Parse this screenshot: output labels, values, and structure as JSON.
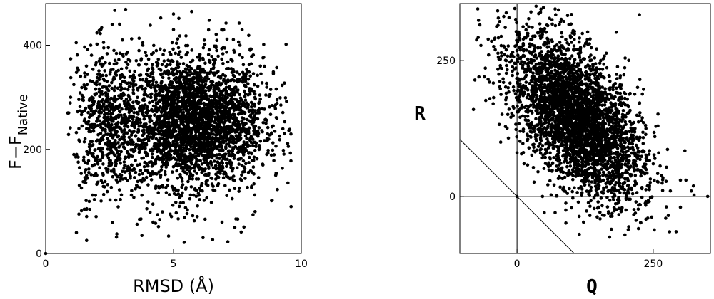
{
  "chart_data": [
    {
      "type": "scatter",
      "xlabel": "RMSD (Å)",
      "ylabel_main": "F−F",
      "ylabel_sub": "Native",
      "xlim": [
        0,
        10
      ],
      "ylim": [
        0,
        480
      ],
      "xticks": [
        "0",
        "5",
        "10"
      ],
      "yticks": [
        "0",
        "200",
        "400"
      ],
      "grid": false,
      "color": "#000000",
      "points": [
        [
          0.0,
          0
        ],
        [
          9.6,
          90
        ],
        [
          2.7,
          467
        ],
        [
          1.6,
          25
        ],
        [
          1.2,
          40
        ],
        [
          0.9,
          270
        ],
        [
          4.2,
          60
        ],
        [
          4.3,
          58
        ],
        [
          6.9,
          60
        ],
        [
          7.4,
          50
        ],
        [
          5.0,
          460
        ],
        [
          6.4,
          448
        ],
        [
          5.0,
          430
        ],
        [
          2.6,
          440
        ],
        [
          3.0,
          410
        ],
        [
          9.3,
          198
        ],
        [
          9.2,
          285
        ],
        [
          9.0,
          150
        ],
        [
          1.4,
          82
        ],
        [
          1.7,
          100
        ],
        [
          2.0,
          150
        ],
        [
          2.2,
          360
        ],
        [
          3.3,
          370
        ],
        [
          7.6,
          400
        ],
        [
          8.4,
          360
        ],
        [
          8.9,
          245
        ],
        [
          1.8,
          300
        ],
        [
          2.4,
          210
        ],
        [
          2.9,
          180
        ],
        [
          3.5,
          250
        ],
        [
          4.0,
          330
        ],
        [
          4.5,
          150
        ],
        [
          5.5,
          290
        ],
        [
          6.0,
          210
        ],
        [
          6.5,
          270
        ],
        [
          7.0,
          190
        ],
        [
          7.5,
          310
        ],
        [
          8.0,
          220
        ],
        [
          8.5,
          170
        ],
        [
          1.1,
          190
        ],
        [
          1.3,
          240
        ],
        [
          3.8,
          400
        ]
      ],
      "clusters": [
        {
          "cx": 5.8,
          "cy": 255,
          "sx": 1.35,
          "sy": 60,
          "n": 2500
        },
        {
          "cx": 2.4,
          "cy": 250,
          "sx": 0.6,
          "sy": 70,
          "n": 550
        },
        {
          "cx": 5.5,
          "cy": 230,
          "sx": 2.0,
          "sy": 90,
          "n": 600
        }
      ],
      "xrange_clip": [
        0.8,
        9.6
      ],
      "yrange_clip": [
        20,
        470
      ]
    },
    {
      "type": "scatter",
      "xlabel": "Q",
      "ylabel": "R",
      "xlim": [
        -105,
        355
      ],
      "ylim": [
        -105,
        355
      ],
      "xticks": [
        "0",
        "250"
      ],
      "yticks": [
        "0",
        "250"
      ],
      "grid": false,
      "reference_lines": [
        "x = 0",
        "y = 0",
        "R = -Q"
      ],
      "color": "#000000",
      "points": [
        [
          0,
          0
        ],
        [
          -70,
          220
        ],
        [
          -60,
          220
        ],
        [
          -40,
          270
        ],
        [
          35,
          350
        ],
        [
          70,
          345
        ],
        [
          100,
          335
        ],
        [
          -80,
          160
        ],
        [
          -10,
          250
        ],
        [
          280,
          -65
        ],
        [
          300,
          -20
        ],
        [
          350,
          0
        ],
        [
          170,
          -75
        ],
        [
          70,
          -30
        ],
        [
          50,
          -30
        ],
        [
          250,
          60
        ],
        [
          300,
          30
        ],
        [
          240,
          -40
        ],
        [
          150,
          -20
        ],
        [
          200,
          -25
        ],
        [
          -30,
          100
        ],
        [
          0,
          80
        ],
        [
          -20,
          190
        ],
        [
          20,
          300
        ],
        [
          120,
          300
        ],
        [
          260,
          80
        ],
        [
          310,
          30
        ],
        [
          320,
          10
        ],
        [
          -50,
          180
        ],
        [
          130,
          280
        ]
      ],
      "clusters": [
        {
          "cx": 110,
          "cy": 145,
          "sx": 60,
          "sy": 75,
          "rho": -0.55,
          "n": 3600
        }
      ],
      "xrange_clip": [
        -80,
        350
      ],
      "yrange_clip": [
        -80,
        350
      ]
    }
  ]
}
